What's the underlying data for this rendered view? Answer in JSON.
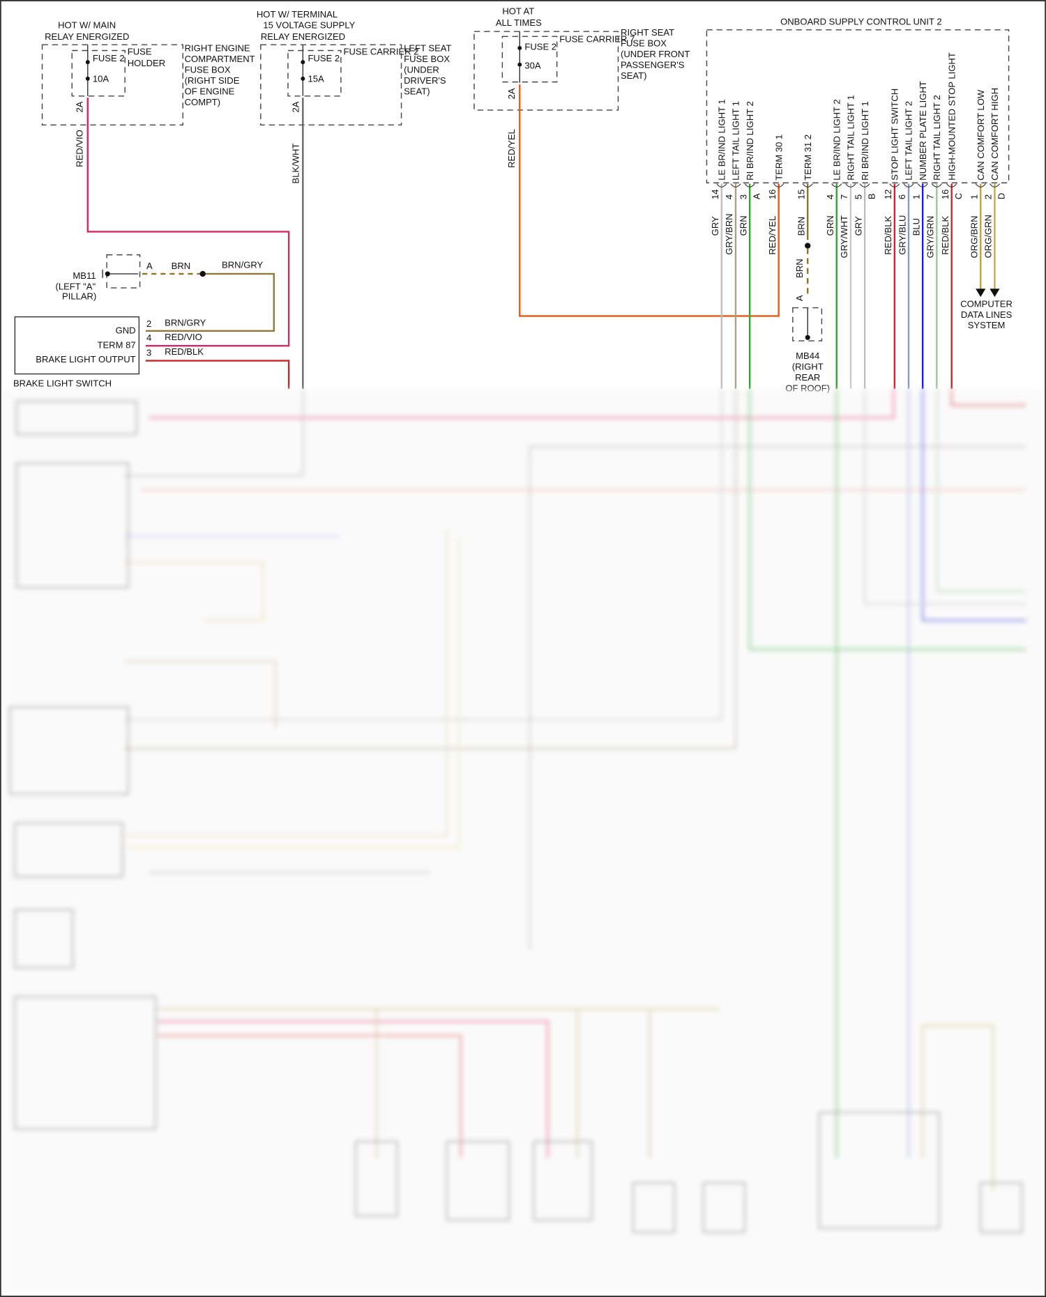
{
  "fuse_blocks": [
    {
      "source": [
        "HOT W/ MAIN",
        "RELAY ENERGIZED"
      ],
      "fuse": "FUSE 2",
      "rating": "10A",
      "carrier": [
        "FUSE",
        "HOLDER"
      ],
      "box": [
        "RIGHT ENGINE",
        "COMPARTMENT",
        "FUSE BOX",
        "(RIGHT SIDE",
        "OF ENGINE",
        "COMPT)"
      ],
      "pin": "2A",
      "wire": "RED/VIO"
    },
    {
      "source": [
        "HOT W/ TERMINAL",
        "15 VOLTAGE SUPPLY",
        "RELAY ENERGIZED"
      ],
      "fuse": "FUSE 2",
      "rating": "15A",
      "carrier": [
        "FUSE CARRIER 2"
      ],
      "box": [
        "LEFT SEAT",
        "FUSE BOX",
        "(UNDER",
        "DRIVER'S",
        "SEAT)"
      ],
      "pin": "2A",
      "wire": "BLK/WHT"
    },
    {
      "source": [
        "HOT AT",
        "ALL TIMES"
      ],
      "fuse": "FUSE 2",
      "rating": "30A",
      "carrier": [
        "FUSE CARRIER 7"
      ],
      "box": [
        "RIGHT SEAT",
        "FUSE BOX",
        "(UNDER FRONT",
        "PASSENGER'S",
        "SEAT)"
      ],
      "pin": "2A",
      "wire": "RED/YEL"
    }
  ],
  "ground_mb11": {
    "name": "MB11",
    "location": [
      "(LEFT \"A\"",
      "PILLAR)"
    ],
    "pin": "A",
    "wire1": "BRN",
    "wire2": "BRN/GRY"
  },
  "brake_switch": {
    "title": "BRAKE LIGHT SWITCH",
    "pins": [
      {
        "label": "GND",
        "num": "2",
        "wire": "BRN/GRY"
      },
      {
        "label": "TERM 87",
        "num": "4",
        "wire": "RED/VIO"
      },
      {
        "label": "BRAKE LIGHT OUTPUT",
        "num": "3",
        "wire": "RED/BLK"
      }
    ]
  },
  "control_unit": {
    "title": "ONBOARD SUPPLY CONTROL UNIT 2",
    "pins": [
      {
        "label": "LE BR/IND LIGHT 1",
        "num": "14",
        "wire": "GRY",
        "color": "#bdbdbd"
      },
      {
        "label": "LEFT TAIL LIGHT 1",
        "num": "4",
        "wire": "GRY/BRN",
        "color": "#a89f84"
      },
      {
        "label": "RI BR/IND LIGHT 2",
        "num": "3",
        "conn": "A",
        "wire": "GRN",
        "color": "#2fa52f"
      },
      {
        "label": "TERM 30 1",
        "num": "16",
        "wire": "RED/YEL",
        "color": "#e84a10"
      },
      {
        "label": "TERM 31 2",
        "num": "15",
        "wire": "BRN",
        "color": "#8d7420"
      },
      {
        "label": "LE BR/IND LIGHT 2",
        "num": "4",
        "wire": "GRN",
        "color": "#2fa52f"
      },
      {
        "label": "RIGHT TAIL LIGHT 1",
        "num": "7",
        "wire": "GRY/WHT",
        "color": "#c8c8c8"
      },
      {
        "label": "RI BR/IND LIGHT 1",
        "num": "5",
        "conn": "B",
        "wire": "GRY",
        "color": "#bdbdbd"
      },
      {
        "label": "STOP LIGHT SWITCH",
        "num": "12",
        "wire": "RED/BLK",
        "color": "#d42020"
      },
      {
        "label": "LEFT TAIL LIGHT 2",
        "num": "6",
        "wire": "GRY/BLU",
        "color": "#8a94d0"
      },
      {
        "label": "NUMBER PLATE LIGHT",
        "num": "1",
        "wire": "BLU",
        "color": "#1a1ae0"
      },
      {
        "label": "RIGHT TAIL LIGHT 2",
        "num": "7",
        "wire": "GRY/GRN",
        "color": "#9cc79c"
      },
      {
        "label": "HIGH-MOUNTED STOP LIGHT",
        "num": "16",
        "conn": "C",
        "wire": "RED/BLK",
        "color": "#d42020"
      },
      {
        "label": "CAN COMFORT LOW",
        "num": "1",
        "wire": "ORG/BRN",
        "color": "#d49a30"
      },
      {
        "label": "CAN COMFORT HIGH",
        "num": "2",
        "conn": "D",
        "wire": "ORG/GRN",
        "color": "#c9a94a"
      }
    ]
  },
  "ground_mb44": {
    "name": "MB44",
    "location": [
      "(RIGHT",
      "REAR",
      "OF ROOF)"
    ],
    "pin": "A",
    "wire": "BRN"
  },
  "data_lines": [
    "COMPUTER",
    "DATA LINES",
    "SYSTEM"
  ],
  "colors": {
    "red_vio": "#e0245e",
    "red_blk": "#d42020",
    "brn_gry": "#8d7a3a",
    "blk_wht": "#555555",
    "red_yel": "#e85a10"
  }
}
